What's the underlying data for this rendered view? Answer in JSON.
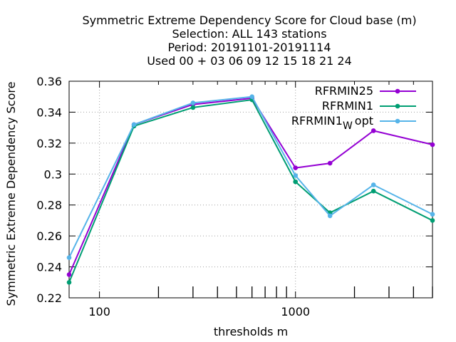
{
  "chart_data": {
    "type": "line",
    "title_lines": [
      "Symmetric Extreme Dependency Score  for Cloud base (m)",
      "Selection: ALL    143 stations",
      "Period: 20191101-20191114",
      "Used  00 + 03 06 09 12 15 18 21 24"
    ],
    "xlabel": "thresholds m",
    "ylabel": "Symmetric Extreme Dependency Score",
    "x_scale": "log",
    "xlim": [
      70,
      5000
    ],
    "ylim": [
      0.22,
      0.36
    ],
    "x_major_ticks": [
      100,
      1000
    ],
    "x_major_tick_labels": [
      "100",
      "1000"
    ],
    "x_minor_ticks": [
      200,
      300,
      400,
      500,
      600,
      700,
      800,
      900,
      2000,
      3000,
      4000,
      5000
    ],
    "y_ticks": [
      0.22,
      0.24,
      0.26,
      0.28,
      0.3,
      0.32,
      0.34,
      0.36
    ],
    "y_tick_labels": [
      "0.22",
      "0.24",
      "0.26",
      "0.28",
      "0.3",
      "0.32",
      "0.34",
      "0.36"
    ],
    "grid": true,
    "legend_position": "top-right",
    "x": [
      70,
      150,
      300,
      600,
      1000,
      1500,
      2500,
      5000
    ],
    "series": [
      {
        "name": "RFRMIN25",
        "color": "#9400d3",
        "values": [
          0.235,
          0.332,
          0.345,
          0.349,
          0.304,
          0.307,
          0.328,
          0.319
        ]
      },
      {
        "name": "RFRMIN1",
        "color": "#009e73",
        "values": [
          0.23,
          0.331,
          0.343,
          0.348,
          0.295,
          0.275,
          0.289,
          0.27
        ]
      },
      {
        "name": "RFRMIN1",
        "name_subscript": "W",
        "name_suffix": "opt",
        "color": "#56b4e9",
        "values": [
          0.246,
          0.332,
          0.346,
          0.35,
          0.299,
          0.273,
          0.293,
          0.274
        ]
      }
    ]
  }
}
